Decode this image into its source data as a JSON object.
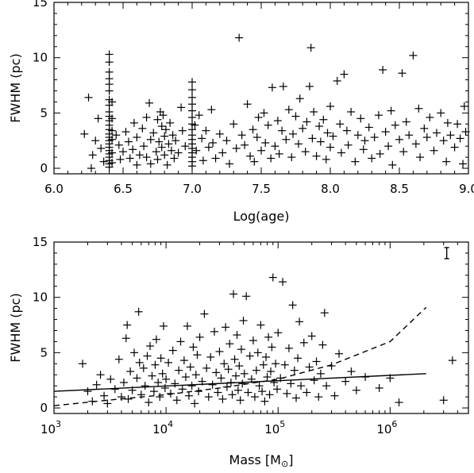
{
  "chart_data": [
    {
      "type": "scatter",
      "xlabel": "Log(age)",
      "ylabel": "FWHM (pc)",
      "xlim": [
        6.0,
        9.0
      ],
      "ylim": [
        -0.5,
        15
      ],
      "xticks": [
        6.0,
        6.5,
        7.0,
        7.5,
        8.0,
        8.5,
        9.0
      ],
      "xtick_labels": [
        "6.0",
        "6.5",
        "7.0",
        "7.5",
        "8.0",
        "8.5",
        "9.0"
      ],
      "yticks": [
        0,
        5,
        10,
        15
      ],
      "ytick_labels": [
        "0",
        "5",
        "10",
        "15"
      ],
      "marker": "+",
      "grid": false,
      "points": [
        [
          6.25,
          6.4
        ],
        [
          6.22,
          3.1
        ],
        [
          6.28,
          1.2
        ],
        [
          6.3,
          2.5
        ],
        [
          6.27,
          0.0
        ],
        [
          6.32,
          4.5
        ],
        [
          6.34,
          1.8
        ],
        [
          6.36,
          0.6
        ],
        [
          6.4,
          10.3
        ],
        [
          6.4,
          9.6
        ],
        [
          6.4,
          8.7
        ],
        [
          6.4,
          8.1
        ],
        [
          6.4,
          7.6
        ],
        [
          6.4,
          7.0
        ],
        [
          6.4,
          6.2
        ],
        [
          6.4,
          5.7
        ],
        [
          6.4,
          5.1
        ],
        [
          6.4,
          4.7
        ],
        [
          6.4,
          4.3
        ],
        [
          6.4,
          3.9
        ],
        [
          6.4,
          3.5
        ],
        [
          6.4,
          3.1
        ],
        [
          6.4,
          2.8
        ],
        [
          6.4,
          2.5
        ],
        [
          6.4,
          2.2
        ],
        [
          6.4,
          1.9
        ],
        [
          6.4,
          1.6
        ],
        [
          6.4,
          1.3
        ],
        [
          6.4,
          1.0
        ],
        [
          6.4,
          0.7
        ],
        [
          6.4,
          0.4
        ],
        [
          6.4,
          0.1
        ],
        [
          6.42,
          6.0
        ],
        [
          6.42,
          4.5
        ],
        [
          6.42,
          3.4
        ],
        [
          6.42,
          2.6
        ],
        [
          6.42,
          1.4
        ],
        [
          6.42,
          0.5
        ],
        [
          6.45,
          3.0
        ],
        [
          6.47,
          2.1
        ],
        [
          6.48,
          0.8
        ],
        [
          6.5,
          1.5
        ],
        [
          6.52,
          3.3
        ],
        [
          6.54,
          2.4
        ],
        [
          6.55,
          0.9
        ],
        [
          6.57,
          1.7
        ],
        [
          6.58,
          4.1
        ],
        [
          6.6,
          2.8
        ],
        [
          6.6,
          0.3
        ],
        [
          6.62,
          1.2
        ],
        [
          6.64,
          3.6
        ],
        [
          6.65,
          2.0
        ],
        [
          6.67,
          4.6
        ],
        [
          6.67,
          1.0
        ],
        [
          6.69,
          5.9
        ],
        [
          6.7,
          2.6
        ],
        [
          6.7,
          0.4
        ],
        [
          6.72,
          3.2
        ],
        [
          6.74,
          1.5
        ],
        [
          6.75,
          4.4
        ],
        [
          6.75,
          0.8
        ],
        [
          6.76,
          2.4
        ],
        [
          6.77,
          5.1
        ],
        [
          6.78,
          3.8
        ],
        [
          6.78,
          1.9
        ],
        [
          6.79,
          4.8
        ],
        [
          6.8,
          2.9
        ],
        [
          6.8,
          1.2
        ],
        [
          6.81,
          3.5
        ],
        [
          6.82,
          0.3
        ],
        [
          6.83,
          2.2
        ],
        [
          6.84,
          4.1
        ],
        [
          6.85,
          1.6
        ],
        [
          6.86,
          3.0
        ],
        [
          6.87,
          0.9
        ],
        [
          6.88,
          2.5
        ],
        [
          6.9,
          1.4
        ],
        [
          6.92,
          5.5
        ],
        [
          6.93,
          3.4
        ],
        [
          6.95,
          2.0
        ],
        [
          7.0,
          7.8
        ],
        [
          7.0,
          7.1
        ],
        [
          7.0,
          6.4
        ],
        [
          7.0,
          5.8
        ],
        [
          7.0,
          5.2
        ],
        [
          7.0,
          4.6
        ],
        [
          7.0,
          4.0
        ],
        [
          7.0,
          3.5
        ],
        [
          7.0,
          3.0
        ],
        [
          7.0,
          2.6
        ],
        [
          7.0,
          2.2
        ],
        [
          7.0,
          1.8
        ],
        [
          7.0,
          1.4
        ],
        [
          7.0,
          1.0
        ],
        [
          7.0,
          0.6
        ],
        [
          7.0,
          0.2
        ],
        [
          7.02,
          3.9
        ],
        [
          7.03,
          1.6
        ],
        [
          7.05,
          4.8
        ],
        [
          7.07,
          2.7
        ],
        [
          7.08,
          0.7
        ],
        [
          7.1,
          3.4
        ],
        [
          7.12,
          1.9
        ],
        [
          7.14,
          5.3
        ],
        [
          7.15,
          2.3
        ],
        [
          7.17,
          0.9
        ],
        [
          7.2,
          3.1
        ],
        [
          7.22,
          1.4
        ],
        [
          7.25,
          2.5
        ],
        [
          7.27,
          0.4
        ],
        [
          7.3,
          4.0
        ],
        [
          7.32,
          1.8
        ],
        [
          7.34,
          11.8
        ],
        [
          7.36,
          3.0
        ],
        [
          7.38,
          2.1
        ],
        [
          7.4,
          5.8
        ],
        [
          7.42,
          1.1
        ],
        [
          7.44,
          3.5
        ],
        [
          7.45,
          0.6
        ],
        [
          7.47,
          2.8
        ],
        [
          7.48,
          4.6
        ],
        [
          7.5,
          1.6
        ],
        [
          7.52,
          5.0
        ],
        [
          7.53,
          2.3
        ],
        [
          7.55,
          3.9
        ],
        [
          7.57,
          0.9
        ],
        [
          7.58,
          7.3
        ],
        [
          7.6,
          2.0
        ],
        [
          7.62,
          4.3
        ],
        [
          7.63,
          1.3
        ],
        [
          7.65,
          3.4
        ],
        [
          7.66,
          7.4
        ],
        [
          7.68,
          2.6
        ],
        [
          7.7,
          5.3
        ],
        [
          7.72,
          1.0
        ],
        [
          7.73,
          3.1
        ],
        [
          7.75,
          4.7
        ],
        [
          7.77,
          2.2
        ],
        [
          7.78,
          6.3
        ],
        [
          7.8,
          3.6
        ],
        [
          7.82,
          1.5
        ],
        [
          7.83,
          4.2
        ],
        [
          7.85,
          7.4
        ],
        [
          7.86,
          10.9
        ],
        [
          7.87,
          2.7
        ],
        [
          7.88,
          5.1
        ],
        [
          7.9,
          1.1
        ],
        [
          7.92,
          3.8
        ],
        [
          7.93,
          2.4
        ],
        [
          7.95,
          4.4
        ],
        [
          7.97,
          0.8
        ],
        [
          7.98,
          3.2
        ],
        [
          8.0,
          5.6
        ],
        [
          8.0,
          1.9
        ],
        [
          8.02,
          2.9
        ],
        [
          8.05,
          7.9
        ],
        [
          8.07,
          4.0
        ],
        [
          8.08,
          1.4
        ],
        [
          8.1,
          8.5
        ],
        [
          8.12,
          3.4
        ],
        [
          8.13,
          2.1
        ],
        [
          8.15,
          5.1
        ],
        [
          8.18,
          0.6
        ],
        [
          8.2,
          3.0
        ],
        [
          8.22,
          4.5
        ],
        [
          8.24,
          1.7
        ],
        [
          8.25,
          2.5
        ],
        [
          8.28,
          3.7
        ],
        [
          8.3,
          0.9
        ],
        [
          8.32,
          2.8
        ],
        [
          8.35,
          4.8
        ],
        [
          8.36,
          1.3
        ],
        [
          8.38,
          8.9
        ],
        [
          8.4,
          3.3
        ],
        [
          8.42,
          2.0
        ],
        [
          8.44,
          5.2
        ],
        [
          8.45,
          0.3
        ],
        [
          8.47,
          3.9
        ],
        [
          8.5,
          2.6
        ],
        [
          8.52,
          8.6
        ],
        [
          8.53,
          1.5
        ],
        [
          8.55,
          4.2
        ],
        [
          8.57,
          3.0
        ],
        [
          8.6,
          10.2
        ],
        [
          8.62,
          2.2
        ],
        [
          8.64,
          5.4
        ],
        [
          8.65,
          1.0
        ],
        [
          8.68,
          3.6
        ],
        [
          8.7,
          2.8
        ],
        [
          8.72,
          4.6
        ],
        [
          8.75,
          1.6
        ],
        [
          8.77,
          3.2
        ],
        [
          8.8,
          5.0
        ],
        [
          8.82,
          2.5
        ],
        [
          8.84,
          0.6
        ],
        [
          8.85,
          4.1
        ],
        [
          8.87,
          3.0
        ],
        [
          8.9,
          1.9
        ],
        [
          8.92,
          4.0
        ],
        [
          8.94,
          2.7
        ],
        [
          8.96,
          0.4
        ],
        [
          8.97,
          5.6
        ],
        [
          8.98,
          3.3
        ]
      ]
    },
    {
      "type": "scatter",
      "xlabel": "Mass [M",
      "xlabel_unit_symbol": "⊙",
      "xlabel_close": "]",
      "ylabel": "FWHM (pc)",
      "xscale": "log",
      "xlim": [
        1000,
        5000000
      ],
      "ylim": [
        -0.5,
        15
      ],
      "xtick_mantissa": "10",
      "xtick_exponents": [
        "3",
        "4",
        "5",
        "6"
      ],
      "xticks": [
        1000,
        10000,
        100000,
        1000000
      ],
      "yticks": [
        0,
        5,
        10,
        15
      ],
      "ytick_labels": [
        "0",
        "5",
        "10",
        "15"
      ],
      "marker": "+",
      "grid": false,
      "error_bar": {
        "x": 3200000,
        "y": 14.0,
        "half_height": 0.5
      },
      "fit_solid": {
        "x": [
          1000,
          2100000
        ],
        "y": [
          1.5,
          3.1
        ]
      },
      "fit_dashed": {
        "x": [
          1000,
          3000,
          10000,
          30000,
          100000,
          300000,
          1000000,
          2100000
        ],
        "y": [
          0.2,
          0.7,
          1.2,
          1.8,
          2.6,
          3.9,
          6.0,
          9.1
        ]
      },
      "points": [
        [
          1800,
          4.0
        ],
        [
          2000,
          1.5
        ],
        [
          2200,
          0.6
        ],
        [
          2400,
          2.1
        ],
        [
          2600,
          3.0
        ],
        [
          2800,
          1.1
        ],
        [
          3000,
          0.4
        ],
        [
          3200,
          2.6
        ],
        [
          3500,
          1.7
        ],
        [
          3800,
          4.4
        ],
        [
          4000,
          1.0
        ],
        [
          4200,
          2.3
        ],
        [
          4400,
          6.3
        ],
        [
          4500,
          7.5
        ],
        [
          4600,
          0.8
        ],
        [
          4800,
          3.3
        ],
        [
          5000,
          1.6
        ],
        [
          5200,
          5.0
        ],
        [
          5500,
          2.7
        ],
        [
          5700,
          8.7
        ],
        [
          5800,
          4.1
        ],
        [
          6000,
          1.2
        ],
        [
          6300,
          3.6
        ],
        [
          6500,
          2.0
        ],
        [
          6800,
          4.7
        ],
        [
          7000,
          0.5
        ],
        [
          7200,
          5.6
        ],
        [
          7500,
          2.9
        ],
        [
          7800,
          1.5
        ],
        [
          8000,
          3.9
        ],
        [
          8200,
          6.2
        ],
        [
          8500,
          2.3
        ],
        [
          8800,
          1.0
        ],
        [
          9000,
          4.5
        ],
        [
          9300,
          3.1
        ],
        [
          9500,
          7.4
        ],
        [
          9800,
          1.8
        ],
        [
          10000,
          2.6
        ],
        [
          10500,
          4.1
        ],
        [
          11000,
          1.3
        ],
        [
          11500,
          5.2
        ],
        [
          12000,
          2.2
        ],
        [
          12500,
          0.7
        ],
        [
          13000,
          3.4
        ],
        [
          13500,
          6.0
        ],
        [
          14000,
          1.7
        ],
        [
          14500,
          4.3
        ],
        [
          15000,
          2.8
        ],
        [
          15500,
          7.4
        ],
        [
          16000,
          1.1
        ],
        [
          16500,
          3.7
        ],
        [
          17000,
          2.0
        ],
        [
          17500,
          5.5
        ],
        [
          18000,
          0.4
        ],
        [
          18500,
          3.0
        ],
        [
          19000,
          4.8
        ],
        [
          19500,
          1.5
        ],
        [
          20000,
          6.4
        ],
        [
          21000,
          2.4
        ],
        [
          22000,
          8.5
        ],
        [
          23000,
          3.6
        ],
        [
          24000,
          1.0
        ],
        [
          25000,
          4.6
        ],
        [
          26000,
          2.1
        ],
        [
          27000,
          6.9
        ],
        [
          28000,
          3.2
        ],
        [
          29000,
          1.4
        ],
        [
          30000,
          5.1
        ],
        [
          31000,
          2.7
        ],
        [
          32000,
          0.8
        ],
        [
          33000,
          4.0
        ],
        [
          34000,
          7.3
        ],
        [
          35000,
          1.9
        ],
        [
          36000,
          3.5
        ],
        [
          37000,
          5.8
        ],
        [
          38000,
          2.3
        ],
        [
          39000,
          1.2
        ],
        [
          40000,
          10.3
        ],
        [
          41000,
          4.4
        ],
        [
          42000,
          2.9
        ],
        [
          43000,
          6.6
        ],
        [
          44000,
          1.6
        ],
        [
          45000,
          3.8
        ],
        [
          46000,
          0.7
        ],
        [
          47000,
          5.3
        ],
        [
          48000,
          2.2
        ],
        [
          49000,
          7.9
        ],
        [
          50000,
          3.1
        ],
        [
          52000,
          10.1
        ],
        [
          54000,
          1.4
        ],
        [
          56000,
          4.7
        ],
        [
          58000,
          2.6
        ],
        [
          60000,
          6.1
        ],
        [
          62000,
          1.0
        ],
        [
          64000,
          3.4
        ],
        [
          66000,
          5.0
        ],
        [
          68000,
          2.0
        ],
        [
          70000,
          7.5
        ],
        [
          72000,
          1.5
        ],
        [
          74000,
          3.9
        ],
        [
          76000,
          0.6
        ],
        [
          78000,
          4.6
        ],
        [
          80000,
          2.8
        ],
        [
          82000,
          6.4
        ],
        [
          84000,
          1.2
        ],
        [
          86000,
          3.3
        ],
        [
          88000,
          5.5
        ],
        [
          90000,
          11.8
        ],
        [
          92000,
          2.3
        ],
        [
          95000,
          4.0
        ],
        [
          98000,
          1.7
        ],
        [
          100000,
          6.8
        ],
        [
          105000,
          2.7
        ],
        [
          110000,
          11.4
        ],
        [
          115000,
          3.9
        ],
        [
          120000,
          1.3
        ],
        [
          125000,
          5.4
        ],
        [
          130000,
          2.2
        ],
        [
          135000,
          9.3
        ],
        [
          140000,
          3.4
        ],
        [
          145000,
          0.9
        ],
        [
          150000,
          4.5
        ],
        [
          155000,
          7.8
        ],
        [
          160000,
          2.0
        ],
        [
          170000,
          5.9
        ],
        [
          180000,
          1.4
        ],
        [
          190000,
          3.7
        ],
        [
          200000,
          6.5
        ],
        [
          210000,
          2.5
        ],
        [
          220000,
          4.2
        ],
        [
          230000,
          1.0
        ],
        [
          240000,
          3.1
        ],
        [
          250000,
          5.7
        ],
        [
          260000,
          8.6
        ],
        [
          270000,
          2.0
        ],
        [
          300000,
          3.8
        ],
        [
          320000,
          1.1
        ],
        [
          350000,
          4.9
        ],
        [
          400000,
          2.4
        ],
        [
          450000,
          3.3
        ],
        [
          500000,
          1.6
        ],
        [
          600000,
          2.8
        ],
        [
          800000,
          1.8
        ],
        [
          1000000,
          2.7
        ],
        [
          1200000,
          0.5
        ],
        [
          3000000,
          0.7
        ],
        [
          3600000,
          4.3
        ]
      ]
    }
  ]
}
